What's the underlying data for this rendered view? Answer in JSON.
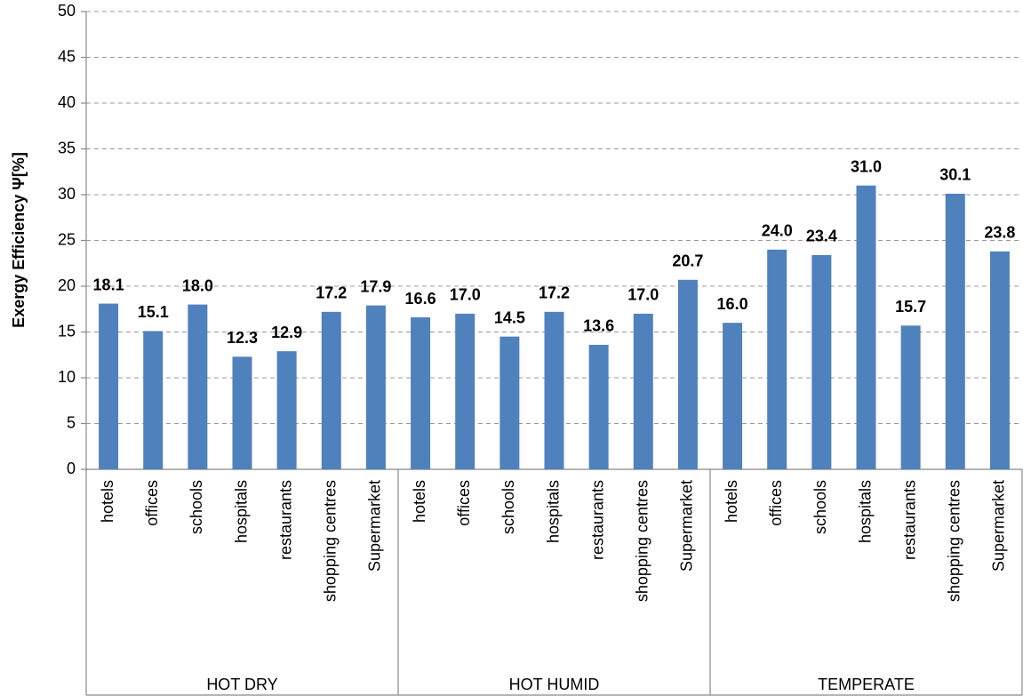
{
  "chart_data": {
    "type": "bar",
    "y_label": "Exergy Efficiency Ψ[%]",
    "groups": [
      "HOT DRY",
      "HOT HUMID",
      "TEMPERATE"
    ],
    "categories": [
      "hotels",
      "offices",
      "schools",
      "hospitals",
      "restaurants",
      "shopping centres",
      "Supermarket",
      "hotels",
      "offices",
      "schools",
      "hospitals",
      "restaurants",
      "shopping centres",
      "Supermarket",
      "hotels",
      "offices",
      "schools",
      "hospitals",
      "restaurants",
      "shopping centres",
      "Supermarket"
    ],
    "values": [
      18.1,
      15.1,
      18.0,
      12.3,
      12.9,
      17.2,
      17.9,
      16.6,
      17.0,
      14.5,
      17.2,
      13.6,
      17.0,
      20.7,
      16.0,
      24.0,
      23.4,
      31.0,
      15.7,
      30.1,
      23.8
    ],
    "value_labels": [
      "18.1",
      "15.1",
      "18.0",
      "12.3",
      "12.9",
      "17.2",
      "17.9",
      "16.6",
      "17.0",
      "14.5",
      "17.2",
      "13.6",
      "17.0",
      "20.7",
      "16.0",
      "24.0",
      "23.4",
      "31.0",
      "15.7",
      "30.1",
      "23.8"
    ],
    "color": "#4f81bd",
    "ylim": [
      0,
      50
    ],
    "yticks": [
      0,
      5,
      10,
      15,
      20,
      25,
      30,
      35,
      40,
      45,
      50
    ],
    "grid": true
  }
}
